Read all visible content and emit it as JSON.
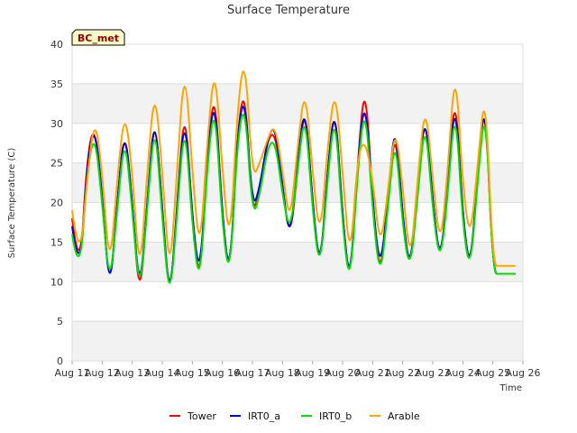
{
  "chart_data": {
    "type": "line",
    "title": "Surface Temperature",
    "xlabel": "Time",
    "ylabel": "Surface Temperature (C)",
    "site_label": "BC_met",
    "ylim": [
      0,
      40
    ],
    "yticks": [
      0,
      5,
      10,
      15,
      20,
      25,
      30,
      35,
      40
    ],
    "xlim": [
      0,
      15
    ],
    "xticks": [
      0,
      1,
      2,
      3,
      4,
      5,
      6,
      7,
      8,
      9,
      10,
      11,
      12,
      13,
      14,
      15
    ],
    "xtick_labels": [
      "Aug 11",
      "Aug 12",
      "Aug 13",
      "Aug 14",
      "Aug 15",
      "Aug 16",
      "Aug 17",
      "Aug 18",
      "Aug 19",
      "Aug 20",
      "Aug 21",
      "Aug 22",
      "Aug 23",
      "Aug 24",
      "Aug 25",
      "Aug 26"
    ],
    "grid": true,
    "legend_position": "bottom",
    "x": [
      0.0,
      0.25,
      0.5,
      0.75,
      1.0,
      1.25,
      1.5,
      1.75,
      2.0,
      2.25,
      2.5,
      2.75,
      3.0,
      3.25,
      3.5,
      3.75,
      4.0,
      4.25,
      4.5,
      4.75,
      5.0,
      5.25,
      5.5,
      5.75,
      6.0,
      6.25,
      6.5,
      6.75,
      7.0,
      7.25,
      7.5,
      7.75,
      8.0,
      8.25,
      8.5,
      8.75,
      9.0,
      9.25,
      9.5,
      9.75,
      10.0,
      10.25,
      10.5,
      10.75,
      11.0,
      11.25,
      11.5,
      11.75,
      12.0,
      12.25,
      12.5,
      12.75,
      13.0,
      13.25,
      13.5,
      13.75,
      14.0,
      14.25,
      14.5,
      14.75
    ],
    "series": [
      {
        "name": "Tower",
        "color": "#ff0000",
        "values": [
          18,
          10,
          26,
          30,
          21,
          8,
          20,
          30,
          20,
          7,
          20,
          32,
          19,
          7,
          20,
          33,
          18,
          9,
          26,
          35,
          18,
          10,
          29,
          35,
          18,
          22,
          28,
          29,
          22,
          15,
          24,
          33,
          20,
          11,
          24,
          33,
          18,
          9,
          25,
          36,
          20,
          10,
          20,
          30,
          18,
          11,
          22,
          32,
          20,
          12,
          22,
          35,
          18,
          11,
          24,
          34,
          11,
          11,
          11,
          11
        ]
      },
      {
        "name": "IRT0_a",
        "color": "#0000cc",
        "values": [
          17,
          10,
          25,
          30,
          21,
          8,
          20,
          30,
          20,
          8,
          20,
          32,
          19,
          7,
          20,
          32,
          18,
          10,
          26,
          34,
          18,
          10,
          29,
          34,
          19,
          22,
          28,
          30,
          22,
          15,
          25,
          33,
          20,
          11,
          24,
          33,
          18,
          9,
          25,
          34,
          20,
          11,
          20,
          31,
          18,
          11,
          22,
          32,
          20,
          12,
          22,
          34,
          18,
          11,
          24,
          34,
          11,
          11,
          11,
          11
        ]
      },
      {
        "name": "IRT0_b",
        "color": "#00dd00",
        "values": [
          16,
          10,
          24,
          29,
          20,
          9,
          19,
          29,
          19,
          8,
          19,
          31,
          18,
          7,
          19,
          31,
          17,
          9,
          25,
          33,
          17,
          10,
          28,
          33,
          18,
          21,
          27,
          28,
          21,
          16,
          24,
          32,
          19,
          11,
          23,
          32,
          17,
          9,
          24,
          33,
          19,
          10,
          19,
          29,
          17,
          11,
          21,
          31,
          19,
          12,
          21,
          33,
          17,
          11,
          23,
          33,
          11,
          11,
          11,
          11
        ]
      },
      {
        "name": "Arable",
        "color": "#ffa500",
        "values": [
          19,
          12,
          23,
          31,
          24,
          11,
          23,
          32,
          24,
          10,
          24,
          35,
          24,
          10,
          25,
          38,
          24,
          13,
          28,
          38,
          24,
          14,
          32,
          39,
          23,
          25,
          28,
          30,
          24,
          17,
          27,
          35,
          24,
          15,
          27,
          35,
          24,
          12,
          26,
          28,
          23,
          14,
          21,
          30,
          22,
          12,
          23,
          33,
          23,
          14,
          24,
          38,
          22,
          15,
          25,
          35,
          12,
          12,
          12,
          12
        ]
      }
    ]
  }
}
